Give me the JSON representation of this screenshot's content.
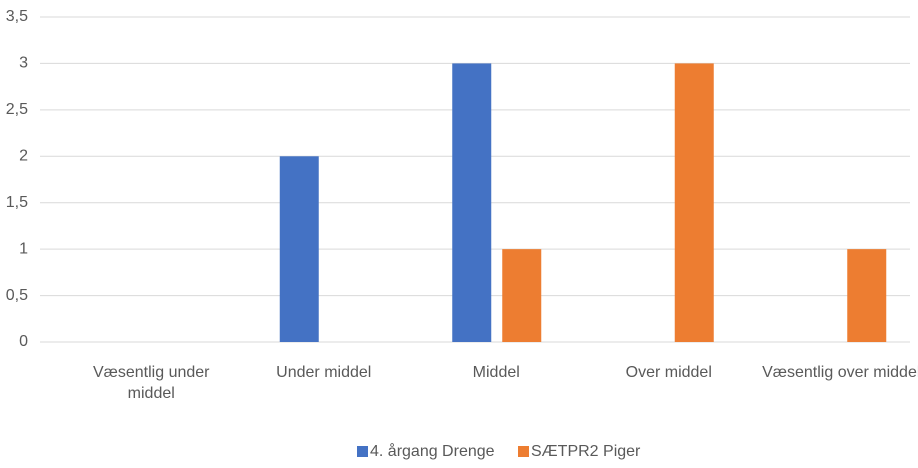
{
  "chart_data": {
    "type": "bar",
    "categories": [
      "Væsentlig under middel",
      "Under middel",
      "Middel",
      "Over middel",
      "Væsentlig over middel"
    ],
    "series": [
      {
        "name": "4. årgang Drenge",
        "color": "#4472c4",
        "values": [
          0,
          2,
          3,
          0,
          0
        ]
      },
      {
        "name": "SÆTPR2 Piger",
        "color": "#ed7d31",
        "values": [
          0,
          0,
          1,
          3,
          1
        ]
      }
    ],
    "ylim": [
      0,
      3.5
    ],
    "yticks": [
      0,
      {
        "value": 0.5,
        "label": "0,5"
      },
      1,
      {
        "value": 1.5,
        "label": "1,5"
      },
      2,
      {
        "value": 2.5,
        "label": "2,5"
      },
      3,
      {
        "value": 3.5,
        "label": "3,5"
      }
    ],
    "grid": true,
    "legend": "bottom"
  }
}
